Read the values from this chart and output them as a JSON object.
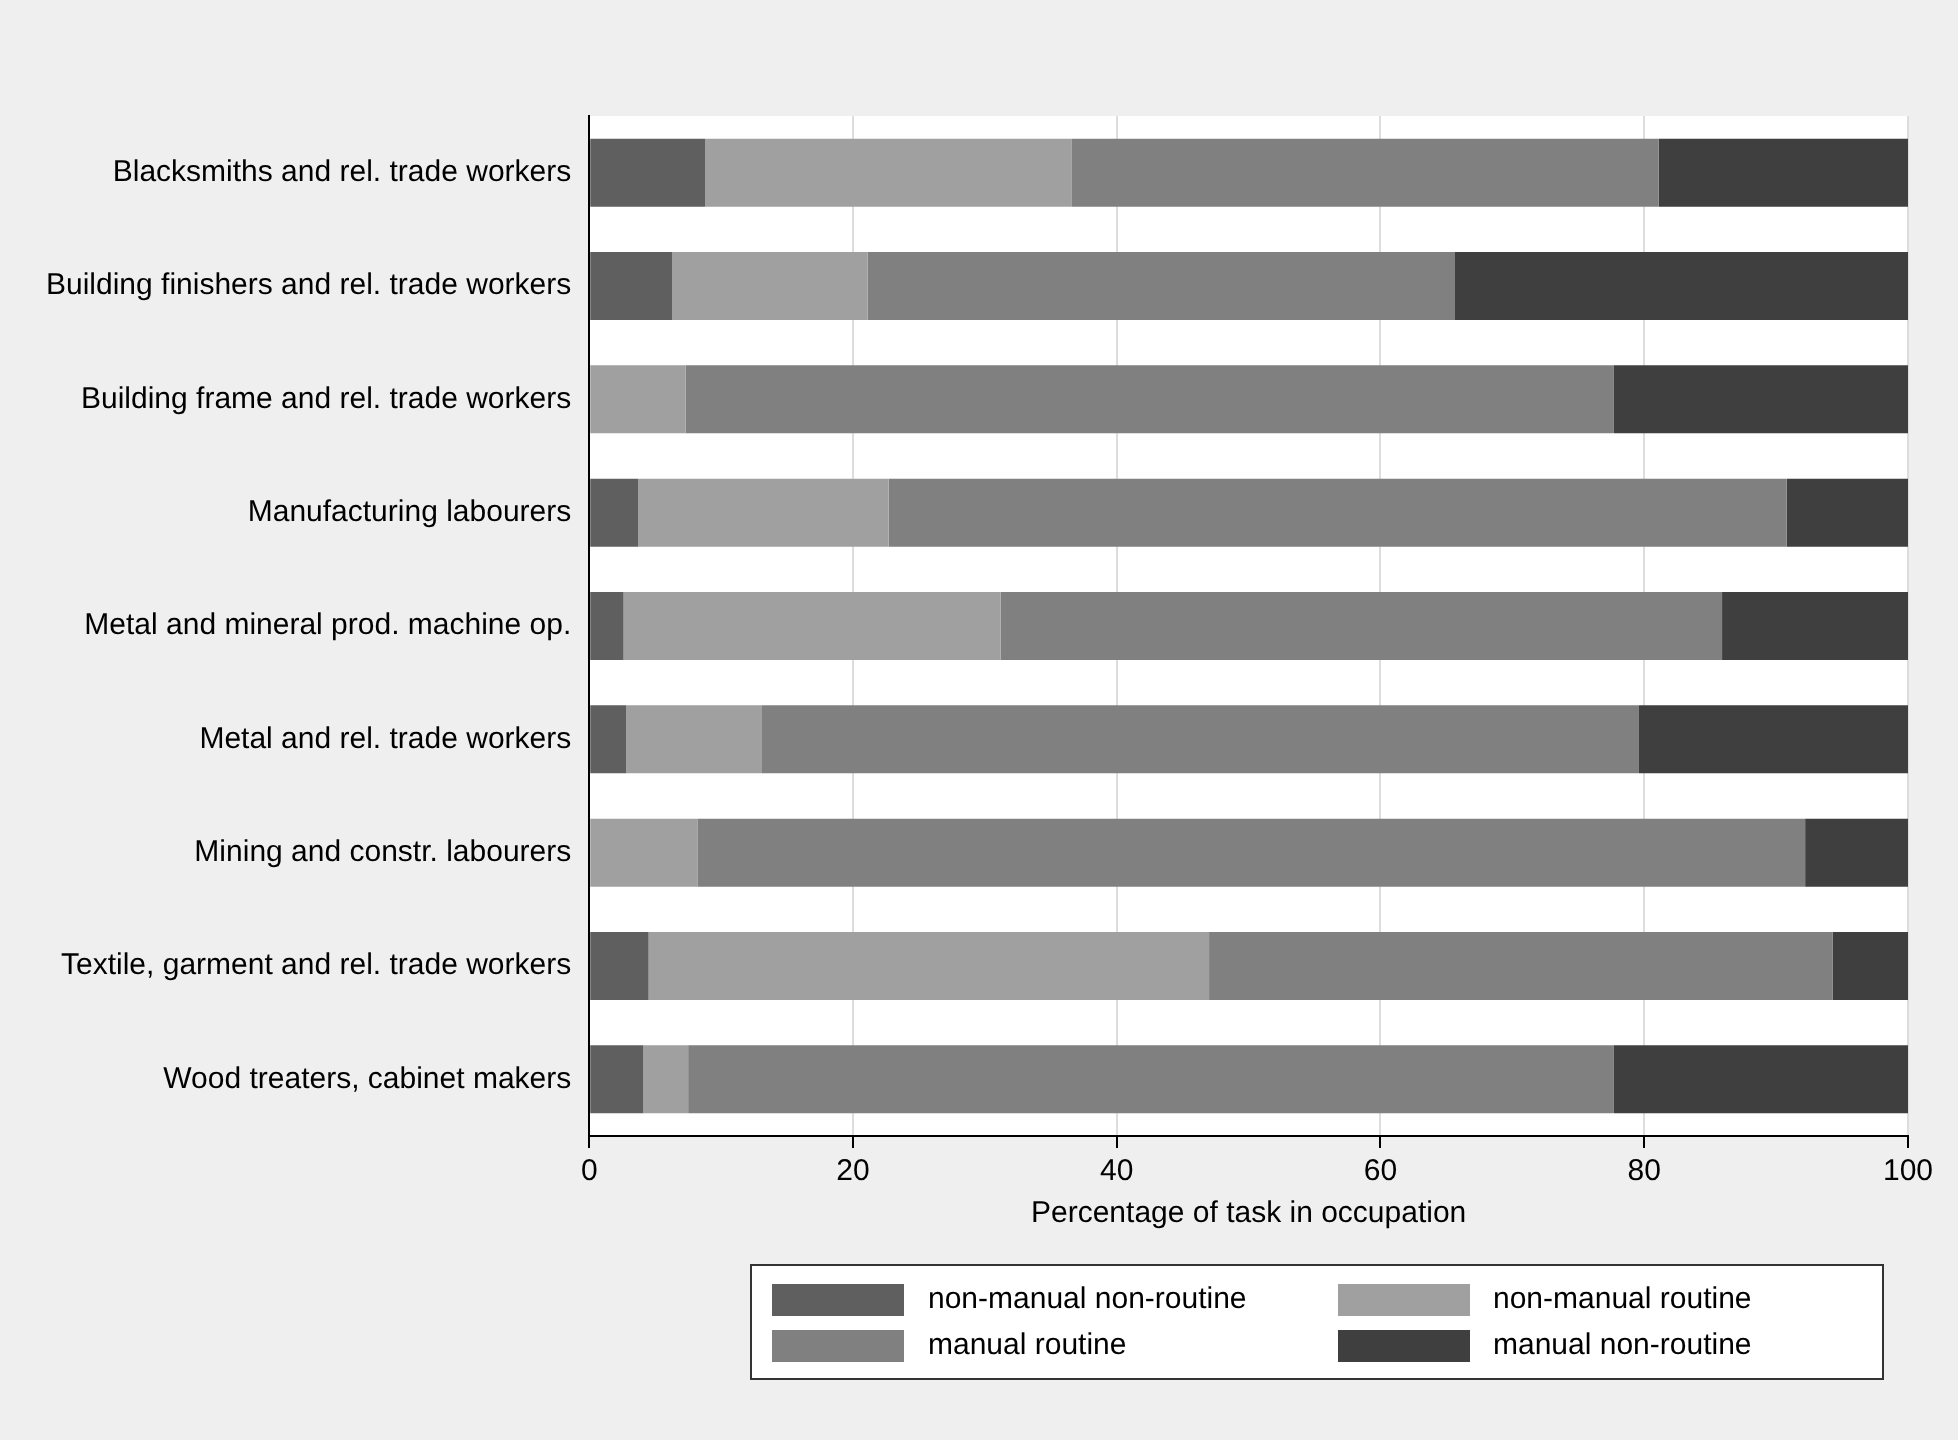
{
  "chart_data": {
    "type": "bar",
    "orientation": "horizontal",
    "stacked": true,
    "xlabel": "Percentage of task in occupation",
    "categories": [
      "Blacksmiths and rel. trade workers",
      "Building finishers and rel. trade workers",
      "Building frame and rel. trade workers",
      "Manufacturing labourers",
      "Metal and mineral prod. machine op.",
      "Metal and rel. trade workers",
      "Mining and constr. labourers",
      "Textile, garment and rel. trade workers",
      "Wood treaters, cabinet makers"
    ],
    "series": [
      {
        "name": "non-manual non-routine",
        "color": "#5f5f5f",
        "values": [
          8.8,
          6.3,
          0,
          3.7,
          2.6,
          2.8,
          0,
          4.5,
          4.1
        ]
      },
      {
        "name": "non-manual routine",
        "color": "#a0a0a0",
        "values": [
          27.8,
          14.8,
          7.3,
          19.0,
          28.6,
          10.3,
          8.2,
          42.5,
          3.4
        ]
      },
      {
        "name": "manual routine",
        "color": "#808080",
        "values": [
          44.5,
          44.5,
          70.4,
          68.1,
          54.7,
          66.5,
          84.0,
          47.3,
          70.2
        ]
      },
      {
        "name": "manual non-routine",
        "color": "#3f3f3f",
        "values": [
          18.9,
          34.4,
          22.3,
          9.2,
          14.1,
          20.4,
          7.8,
          5.7,
          22.3
        ]
      }
    ],
    "xlim": [
      0,
      100
    ],
    "xticks": [
      0,
      20,
      40,
      60,
      80,
      100
    ],
    "grid": "x",
    "legend": "bottom"
  }
}
